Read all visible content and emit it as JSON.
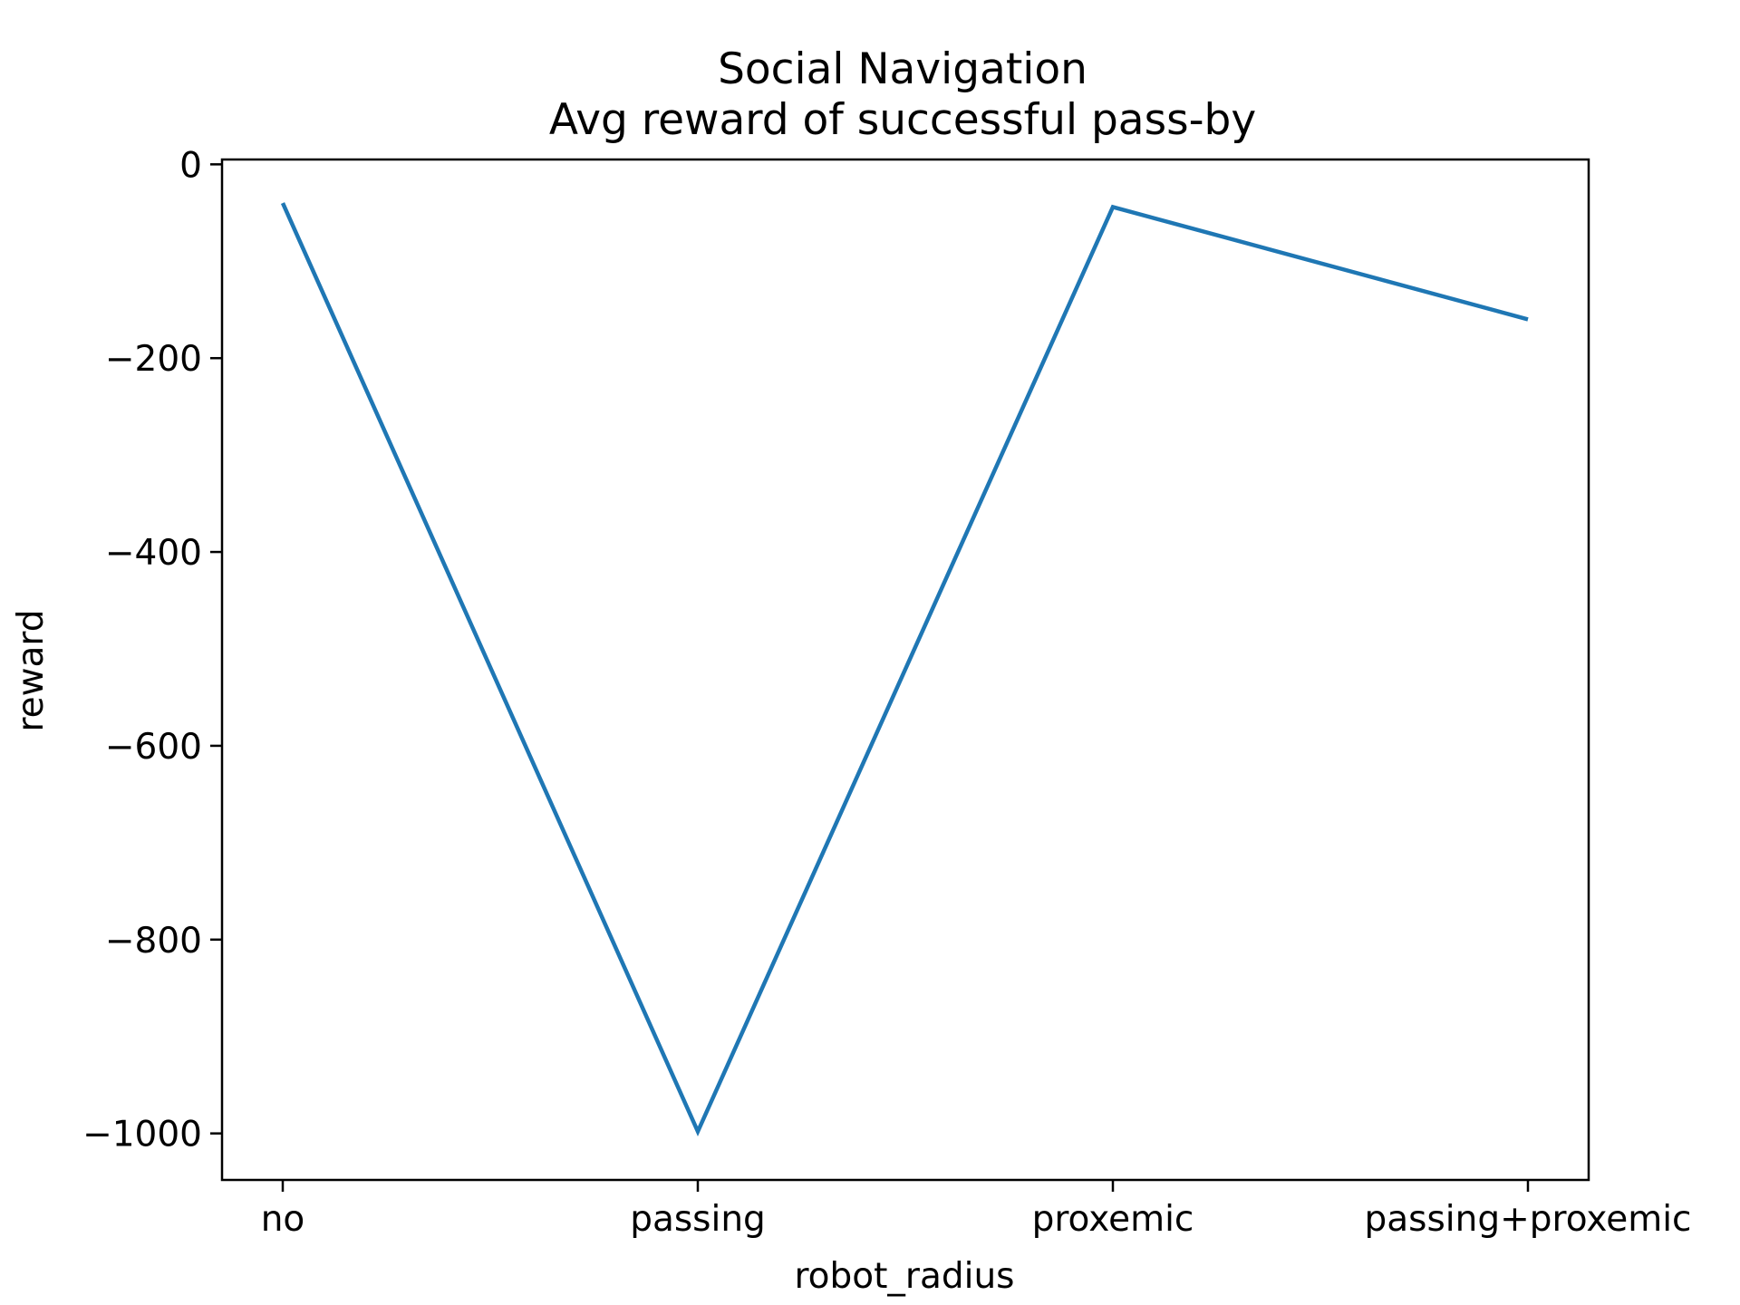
{
  "chart_data": {
    "type": "line",
    "title": "Social Navigation",
    "subtitle": "Avg reward of successful pass-by",
    "xlabel": "robot_radius",
    "ylabel": "reward",
    "categories": [
      "no",
      "passing",
      "proxemic",
      "passing+proxemic"
    ],
    "series": [
      {
        "values": [
          -40,
          -998,
          -44,
          -160
        ],
        "color": "#1f77b4"
      }
    ],
    "ylim": [
      -1048,
      5
    ],
    "yticks": [
      0,
      -200,
      -400,
      -600,
      -800,
      -1000
    ],
    "ytick_labels": [
      "0",
      "−200",
      "−400",
      "−600",
      "−800",
      "−1000"
    ],
    "grid": false,
    "legend": "none"
  }
}
